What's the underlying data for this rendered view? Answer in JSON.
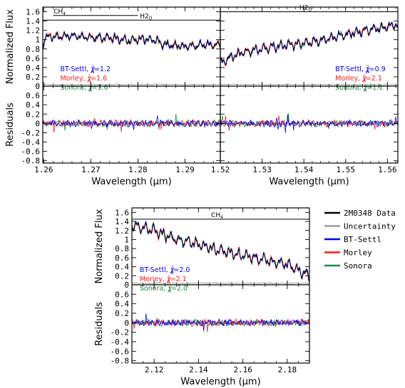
{
  "colors": {
    "data": "#000000",
    "uncertainty": "#9a9a9a",
    "btsettl": "#0000ee",
    "morley": "#ff1a1a",
    "sonora": "#1f8a3c"
  },
  "chart_data": [
    {
      "id": "panel-j1",
      "type": "line",
      "xlabel": "Wavelength (μm)",
      "ylabel_top": "Normalized Flux",
      "ylabel_bottom": "Residuals",
      "xlim": [
        1.2598,
        1.2975
      ],
      "ylim_top": [
        0,
        1.7
      ],
      "ylim_bottom": [
        -0.85,
        0.8
      ],
      "xticks": [
        "1.26",
        "1.27",
        "1.28",
        "1.29"
      ],
      "annotations": [
        {
          "text": "CH4",
          "from": 1.262,
          "to": 1.28,
          "y": 1.52
        },
        {
          "text": "H2O",
          "from": 1.2598,
          "to": 1.2975,
          "y": 1.42
        }
      ],
      "chi2": [
        {
          "model": "BT-Settl",
          "value": "1.2"
        },
        {
          "model": "Morley",
          "value": "1.6"
        },
        {
          "model": "Sonora",
          "value": "1.6"
        }
      ],
      "spectrum": {
        "base": [
          [
            1.26,
            1.05
          ],
          [
            1.265,
            1.08
          ],
          [
            1.27,
            1.05
          ],
          [
            1.275,
            1.03
          ],
          [
            1.278,
            0.97
          ],
          [
            1.28,
            1.02
          ],
          [
            1.283,
            1.0
          ],
          [
            1.286,
            0.9
          ],
          [
            1.29,
            0.85
          ],
          [
            1.293,
            0.88
          ],
          [
            1.2975,
            0.9
          ]
        ],
        "amp": 0.09,
        "seed": 11
      }
    },
    {
      "id": "panel-j2",
      "type": "line",
      "xlabel": "Wavelength (μm)",
      "ylabel_top": "",
      "ylabel_bottom": "",
      "xlim": [
        1.52,
        1.5625
      ],
      "ylim_top": [
        0,
        1.7
      ],
      "ylim_bottom": [
        -0.85,
        0.8
      ],
      "xticks": [
        "1.52",
        "1.53",
        "1.54",
        "1.55",
        "1.56"
      ],
      "annotations": [
        {
          "text": "H2O",
          "from": 1.52,
          "to": 1.5625,
          "y": 1.6
        }
      ],
      "chi2": [
        {
          "model": "BT-Settl",
          "value": "0.9"
        },
        {
          "model": "Morley",
          "value": "2.1"
        },
        {
          "model": "Sonora",
          "value": "1.1"
        }
      ],
      "spectrum": {
        "base": [
          [
            1.52,
            0.5
          ],
          [
            1.525,
            0.72
          ],
          [
            1.53,
            0.8
          ],
          [
            1.535,
            0.88
          ],
          [
            1.54,
            0.92
          ],
          [
            1.545,
            1.0
          ],
          [
            1.55,
            1.12
          ],
          [
            1.555,
            1.2
          ],
          [
            1.5625,
            1.32
          ]
        ],
        "amp": 0.1,
        "seed": 23
      }
    },
    {
      "id": "panel-k",
      "type": "line",
      "xlabel": "Wavelength (μm)",
      "ylabel_top": "Normalized Flux",
      "ylabel_bottom": "Residuals",
      "xlim": [
        2.11,
        2.19
      ],
      "ylim_top": [
        0,
        1.7
      ],
      "ylim_bottom": [
        -0.85,
        0.8
      ],
      "xticks": [
        "2.12",
        "2.14",
        "2.16",
        "2.18"
      ],
      "annotations": [
        {
          "text": "CH4",
          "from": 2.11,
          "to": 2.19,
          "y": 1.45
        }
      ],
      "chi2": [
        {
          "model": "BT-Settl",
          "value": "2.0"
        },
        {
          "model": "Morley",
          "value": "2.1"
        },
        {
          "model": "Sonora",
          "value": "2.0"
        }
      ],
      "spectrum": {
        "base": [
          [
            2.11,
            1.3
          ],
          [
            2.12,
            1.2
          ],
          [
            2.13,
            1.0
          ],
          [
            2.14,
            0.9
          ],
          [
            2.15,
            0.75
          ],
          [
            2.16,
            0.65
          ],
          [
            2.17,
            0.55
          ],
          [
            2.18,
            0.45
          ],
          [
            2.19,
            0.2
          ]
        ],
        "amp": 0.13,
        "seed": 37
      }
    }
  ],
  "legend": {
    "items": [
      {
        "label": "2M0348 Data",
        "color": "#000000"
      },
      {
        "label": "Uncertainty",
        "color": "#9a9a9a"
      },
      {
        "label": "BT-Settl",
        "color": "#0000ee"
      },
      {
        "label": "Morley",
        "color": "#ff1a1a"
      },
      {
        "label": "Sonora",
        "color": "#1f8a3c"
      }
    ]
  }
}
